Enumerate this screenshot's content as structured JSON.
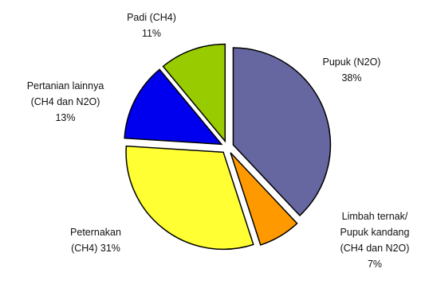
{
  "chart_data": {
    "type": "pie",
    "start_angle_deg": 0,
    "direction": "clockwise",
    "exploded": true,
    "legend": "none",
    "slices": [
      {
        "lines": [
          "Pupuk (N2O)",
          "38%"
        ],
        "value": 38,
        "color": "#6666a0"
      },
      {
        "lines": [
          "Limbah ternak/",
          "Pupuk kandang",
          "(CH4 dan N2O)",
          "7%"
        ],
        "value": 7,
        "color": "#ff9900"
      },
      {
        "lines": [
          "Peternakan",
          "(CH4) 31%"
        ],
        "value": 31,
        "color": "#ffff33"
      },
      {
        "lines": [
          "Pertanian lainnya",
          "(CH4 dan N2O)",
          "13%"
        ],
        "value": 13,
        "color": "#0000ee"
      },
      {
        "lines": [
          "Padi (CH4)",
          "11%"
        ],
        "value": 11,
        "color": "#99cc00"
      }
    ]
  }
}
